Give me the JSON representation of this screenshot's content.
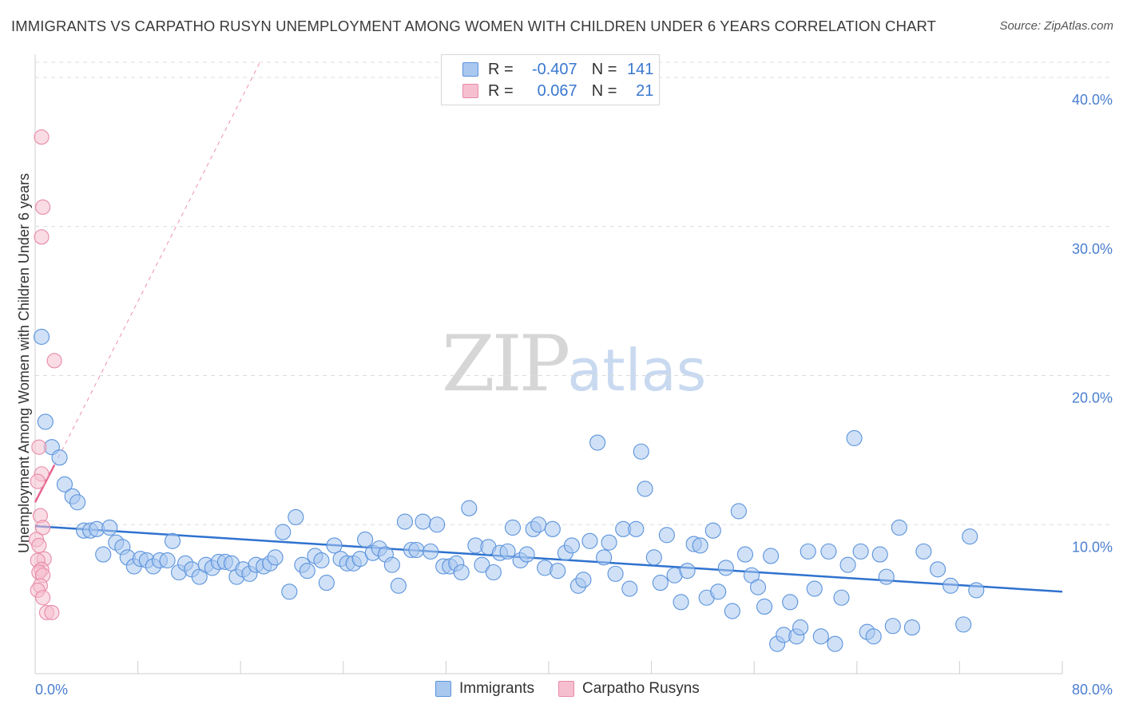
{
  "header": {
    "title": "IMMIGRANTS VS CARPATHO RUSYN UNEMPLOYMENT AMONG WOMEN WITH CHILDREN UNDER 6 YEARS CORRELATION CHART",
    "source": "Source: ZipAtlas.com"
  },
  "watermark": {
    "zip": "ZIP",
    "atlas": "atlas"
  },
  "legend": {
    "rows": [
      {
        "r_label": "R =",
        "r_value": "-0.407",
        "n_label": "N =",
        "n_value": "141"
      },
      {
        "r_label": "R =",
        "r_value": "0.067",
        "n_label": "N =",
        "n_value": "21"
      }
    ],
    "bottom": [
      "Immigrants",
      "Carpatho Rusyns"
    ]
  },
  "colors": {
    "immigrants_fill": "#a9c8f0",
    "immigrants_stroke": "#5b93dc",
    "immigrants_line": "#2f72cf",
    "rusyn_fill": "#f6bfd0",
    "rusyn_stroke": "#e78aa8",
    "rusyn_line": "#e8628d",
    "tick_text": "#4a7fcf",
    "grid": "#dcdcdc"
  },
  "chart_data": {
    "type": "scatter",
    "title": "IMMIGRANTS VS CARPATHO RUSYN UNEMPLOYMENT AMONG WOMEN WITH CHILDREN UNDER 6 YEARS CORRELATION CHART",
    "xlabel": "",
    "ylabel": "Unemployment Among Women with Children Under 6 years",
    "xlim": [
      0,
      80
    ],
    "ylim": [
      0,
      42
    ],
    "x_tick_labels": [
      "0.0%",
      "80.0%"
    ],
    "y_ticks": [
      10,
      20,
      30,
      40
    ],
    "y_tick_labels": [
      "10.0%",
      "20.0%",
      "30.0%",
      "40.0%"
    ],
    "grid": "horizontal dashed",
    "legend_position": "top-center",
    "series": [
      {
        "name": "Immigrants",
        "R": -0.407,
        "N": 141,
        "trend": [
          [
            0,
            9.9
          ],
          [
            80,
            5.5
          ]
        ],
        "points": [
          [
            0.5,
            22.6
          ],
          [
            0.8,
            16.9
          ],
          [
            1.3,
            15.2
          ],
          [
            1.9,
            14.5
          ],
          [
            2.3,
            12.7
          ],
          [
            2.9,
            11.9
          ],
          [
            3.3,
            11.5
          ],
          [
            3.8,
            9.6
          ],
          [
            4.3,
            9.6
          ],
          [
            4.8,
            9.7
          ],
          [
            5.3,
            8.0
          ],
          [
            5.8,
            9.8
          ],
          [
            6.3,
            8.8
          ],
          [
            6.8,
            8.5
          ],
          [
            7.2,
            7.8
          ],
          [
            7.7,
            7.2
          ],
          [
            8.2,
            7.7
          ],
          [
            8.7,
            7.6
          ],
          [
            9.2,
            7.2
          ],
          [
            9.7,
            7.6
          ],
          [
            10.3,
            7.6
          ],
          [
            10.7,
            8.9
          ],
          [
            11.2,
            6.8
          ],
          [
            11.7,
            7.4
          ],
          [
            12.2,
            7.0
          ],
          [
            12.8,
            6.5
          ],
          [
            13.3,
            7.3
          ],
          [
            13.8,
            7.1
          ],
          [
            14.3,
            7.5
          ],
          [
            14.8,
            7.5
          ],
          [
            15.3,
            7.4
          ],
          [
            15.7,
            6.5
          ],
          [
            16.2,
            7.0
          ],
          [
            16.7,
            6.7
          ],
          [
            17.2,
            7.3
          ],
          [
            17.8,
            7.2
          ],
          [
            18.3,
            7.4
          ],
          [
            18.7,
            7.8
          ],
          [
            19.3,
            9.5
          ],
          [
            19.8,
            5.5
          ],
          [
            20.3,
            10.5
          ],
          [
            20.8,
            7.3
          ],
          [
            21.2,
            6.9
          ],
          [
            21.8,
            7.9
          ],
          [
            22.3,
            7.6
          ],
          [
            22.7,
            6.1
          ],
          [
            23.3,
            8.6
          ],
          [
            23.8,
            7.7
          ],
          [
            24.3,
            7.4
          ],
          [
            24.8,
            7.4
          ],
          [
            25.3,
            7.7
          ],
          [
            25.7,
            9.0
          ],
          [
            26.3,
            8.1
          ],
          [
            26.8,
            8.4
          ],
          [
            27.3,
            8.0
          ],
          [
            27.8,
            7.3
          ],
          [
            28.3,
            5.9
          ],
          [
            28.8,
            10.2
          ],
          [
            29.3,
            8.3
          ],
          [
            29.7,
            8.3
          ],
          [
            30.2,
            10.2
          ],
          [
            30.8,
            8.2
          ],
          [
            31.3,
            10.0
          ],
          [
            31.8,
            7.2
          ],
          [
            32.3,
            7.2
          ],
          [
            32.8,
            7.4
          ],
          [
            33.2,
            6.8
          ],
          [
            33.8,
            11.1
          ],
          [
            34.3,
            8.6
          ],
          [
            34.8,
            7.3
          ],
          [
            35.3,
            8.5
          ],
          [
            35.7,
            6.8
          ],
          [
            36.2,
            8.1
          ],
          [
            36.8,
            8.2
          ],
          [
            37.2,
            9.8
          ],
          [
            37.8,
            7.6
          ],
          [
            38.3,
            8.0
          ],
          [
            38.8,
            9.7
          ],
          [
            39.2,
            10.0
          ],
          [
            39.7,
            7.1
          ],
          [
            40.3,
            9.7
          ],
          [
            40.7,
            6.9
          ],
          [
            41.3,
            8.1
          ],
          [
            41.8,
            8.6
          ],
          [
            42.3,
            5.9
          ],
          [
            42.7,
            6.3
          ],
          [
            43.2,
            8.9
          ],
          [
            43.8,
            15.5
          ],
          [
            44.3,
            7.8
          ],
          [
            44.7,
            8.8
          ],
          [
            45.2,
            6.7
          ],
          [
            45.8,
            9.7
          ],
          [
            46.3,
            5.7
          ],
          [
            46.8,
            9.7
          ],
          [
            47.2,
            14.9
          ],
          [
            47.5,
            12.4
          ],
          [
            48.2,
            7.8
          ],
          [
            48.7,
            6.1
          ],
          [
            49.2,
            9.3
          ],
          [
            49.8,
            6.6
          ],
          [
            50.3,
            4.8
          ],
          [
            50.8,
            6.9
          ],
          [
            51.3,
            8.7
          ],
          [
            51.8,
            8.6
          ],
          [
            52.3,
            5.1
          ],
          [
            52.8,
            9.6
          ],
          [
            53.2,
            5.5
          ],
          [
            53.8,
            7.1
          ],
          [
            54.3,
            4.2
          ],
          [
            54.8,
            10.9
          ],
          [
            55.3,
            8.0
          ],
          [
            55.8,
            6.6
          ],
          [
            56.3,
            5.8
          ],
          [
            56.8,
            4.5
          ],
          [
            57.3,
            7.9
          ],
          [
            57.8,
            2.0
          ],
          [
            58.3,
            2.6
          ],
          [
            58.8,
            4.8
          ],
          [
            59.3,
            2.5
          ],
          [
            59.6,
            3.1
          ],
          [
            60.2,
            8.2
          ],
          [
            60.7,
            5.7
          ],
          [
            61.2,
            2.5
          ],
          [
            61.8,
            8.2
          ],
          [
            62.3,
            2.0
          ],
          [
            62.8,
            5.1
          ],
          [
            63.3,
            7.3
          ],
          [
            63.8,
            15.8
          ],
          [
            64.3,
            8.2
          ],
          [
            64.8,
            2.8
          ],
          [
            65.3,
            2.5
          ],
          [
            65.8,
            8.0
          ],
          [
            66.3,
            6.5
          ],
          [
            66.8,
            3.2
          ],
          [
            67.3,
            9.8
          ],
          [
            68.3,
            3.1
          ],
          [
            69.2,
            8.2
          ],
          [
            70.3,
            7.0
          ],
          [
            71.3,
            5.9
          ],
          [
            72.3,
            3.3
          ],
          [
            72.8,
            9.2
          ],
          [
            73.3,
            5.6
          ]
        ]
      },
      {
        "name": "Carpatho Rusyns",
        "R": 0.067,
        "N": 21,
        "trend_solid": [
          [
            0,
            11.5
          ],
          [
            1.5,
            14.0
          ]
        ],
        "trend_dashed": [
          [
            1.5,
            14.0
          ],
          [
            17.5,
            41.0
          ]
        ],
        "points": [
          [
            0.5,
            36.0
          ],
          [
            0.6,
            31.3
          ],
          [
            0.5,
            29.3
          ],
          [
            1.5,
            21.0
          ],
          [
            0.3,
            15.2
          ],
          [
            0.5,
            13.4
          ],
          [
            0.2,
            12.9
          ],
          [
            0.4,
            10.6
          ],
          [
            0.6,
            9.8
          ],
          [
            0.1,
            9.0
          ],
          [
            0.3,
            8.6
          ],
          [
            0.7,
            7.7
          ],
          [
            0.2,
            7.6
          ],
          [
            0.5,
            7.0
          ],
          [
            0.3,
            6.8
          ],
          [
            0.6,
            6.6
          ],
          [
            0.4,
            5.9
          ],
          [
            0.2,
            5.6
          ],
          [
            0.6,
            5.1
          ],
          [
            0.9,
            4.1
          ],
          [
            1.3,
            4.1
          ]
        ]
      }
    ]
  }
}
